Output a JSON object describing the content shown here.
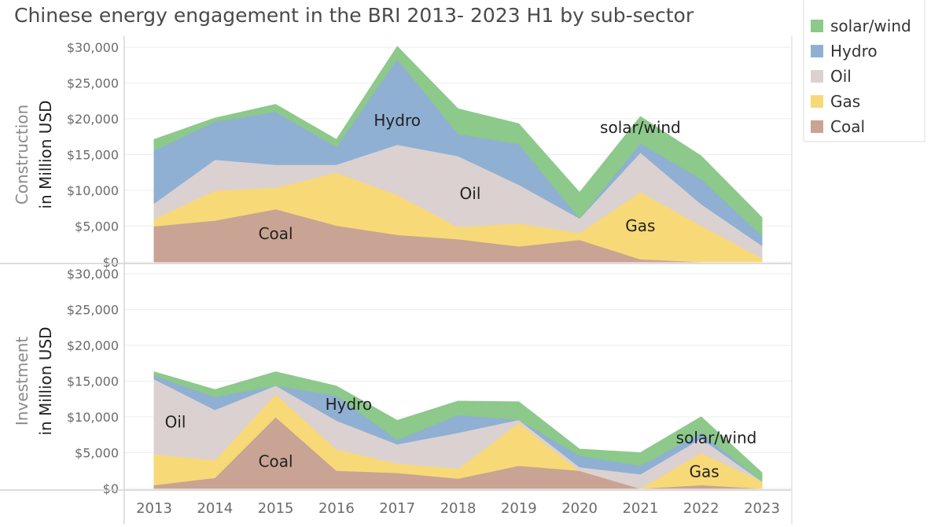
{
  "chart_data": [
    {
      "type": "area",
      "stacked": true,
      "title": "Chinese energy engagement in the BRI 2013- 2023 H1 by sub-sector",
      "panel": "top",
      "ylabel_line1": "Construction",
      "ylabel_line2": "in Million USD",
      "ylim": [
        0,
        30000
      ],
      "yticks": [
        "$0",
        "$5,000",
        "$10,000",
        "$15,000",
        "$20,000",
        "$25,000",
        "$30,000"
      ],
      "ytick_values": [
        0,
        5000,
        10000,
        15000,
        20000,
        25000,
        30000
      ],
      "grid": true,
      "x": [
        2013,
        2014,
        2015,
        2016,
        2017,
        2018,
        2019,
        2020,
        2021,
        2022,
        2023
      ],
      "series": [
        {
          "name": "Coal",
          "values": [
            5000,
            5800,
            7400,
            5100,
            3800,
            3200,
            2200,
            3100,
            400,
            0,
            0
          ]
        },
        {
          "name": "Gas",
          "values": [
            1000,
            4200,
            3000,
            7400,
            5600,
            1700,
            3200,
            1000,
            9400,
            5100,
            500
          ]
        },
        {
          "name": "Oil",
          "values": [
            2200,
            4300,
            3200,
            1100,
            7000,
            9900,
            5400,
            2000,
            5500,
            3000,
            1800
          ]
        },
        {
          "name": "Hydro",
          "values": [
            7400,
            5300,
            7400,
            2500,
            12000,
            3100,
            5700,
            0,
            1300,
            3500,
            1400
          ]
        },
        {
          "name": "solar/wind",
          "values": [
            1500,
            500,
            1000,
            1000,
            1700,
            3500,
            2800,
            3600,
            3700,
            3200,
            2500
          ]
        }
      ],
      "annotations": [
        {
          "text": "Coal",
          "x": 2015,
          "y": 3200
        },
        {
          "text": "Hydro",
          "x": 2017,
          "y": 19000
        },
        {
          "text": "Oil",
          "x": 2018.2,
          "y": 8800
        },
        {
          "text": "solar/wind",
          "x": 2021,
          "y": 18000
        },
        {
          "text": "Gas",
          "x": 2021,
          "y": 4300
        }
      ]
    },
    {
      "type": "area",
      "stacked": true,
      "panel": "bottom",
      "ylabel_line1": "Investment",
      "ylabel_line2": "in Million USD",
      "ylim": [
        0,
        30000
      ],
      "yticks": [
        "$0",
        "$5,000",
        "$10,000",
        "$15,000",
        "$20,000",
        "$25,000",
        "$30,000"
      ],
      "ytick_values": [
        0,
        5000,
        10000,
        15000,
        20000,
        25000,
        30000
      ],
      "grid": true,
      "x": [
        2013,
        2014,
        2015,
        2016,
        2017,
        2018,
        2019,
        2020,
        2021,
        2022,
        2023
      ],
      "xticks": [
        "2013",
        "2014",
        "2015",
        "2016",
        "2017",
        "2018",
        "2019",
        "2020",
        "2021",
        "2022",
        "2023"
      ],
      "series": [
        {
          "name": "Coal",
          "values": [
            500,
            1500,
            10000,
            2500,
            2200,
            1400,
            3200,
            2500,
            0,
            500,
            0
          ]
        },
        {
          "name": "Gas",
          "values": [
            4300,
            2500,
            3200,
            3000,
            1300,
            1400,
            6000,
            0,
            0,
            4500,
            1000
          ]
        },
        {
          "name": "Oil",
          "values": [
            10500,
            7000,
            1200,
            4000,
            2700,
            5000,
            400,
            500,
            2000,
            2000,
            0
          ]
        },
        {
          "name": "Hydro",
          "values": [
            500,
            1800,
            0,
            3500,
            600,
            2500,
            0,
            1600,
            1200,
            800,
            0
          ]
        },
        {
          "name": "solar/wind",
          "values": [
            500,
            1000,
            1900,
            1300,
            2700,
            1900,
            2500,
            900,
            1800,
            2200,
            1200
          ]
        }
      ],
      "annotations": [
        {
          "text": "Oil",
          "x": 2013.35,
          "y": 8500
        },
        {
          "text": "Coal",
          "x": 2015,
          "y": 3000
        },
        {
          "text": "Hydro",
          "x": 2016.2,
          "y": 11000
        },
        {
          "text": "solar/wind",
          "x": 2022.25,
          "y": 6300
        },
        {
          "text": "Gas",
          "x": 2022.05,
          "y": 1600
        }
      ]
    }
  ],
  "legend": {
    "placement": "top-right",
    "items": [
      {
        "label": "solar/wind",
        "color": "#8cc98a"
      },
      {
        "label": "Hydro",
        "color": "#8fb0d3"
      },
      {
        "label": "Oil",
        "color": "#dbd1d1"
      },
      {
        "label": "Gas",
        "color": "#f7d978"
      },
      {
        "label": "Coal",
        "color": "#c9a393"
      }
    ]
  },
  "colors": {
    "Coal": "#c9a393",
    "Gas": "#f7d978",
    "Oil": "#dbd1d1",
    "Hydro": "#8fb0d3",
    "solar/wind": "#8cc98a"
  }
}
